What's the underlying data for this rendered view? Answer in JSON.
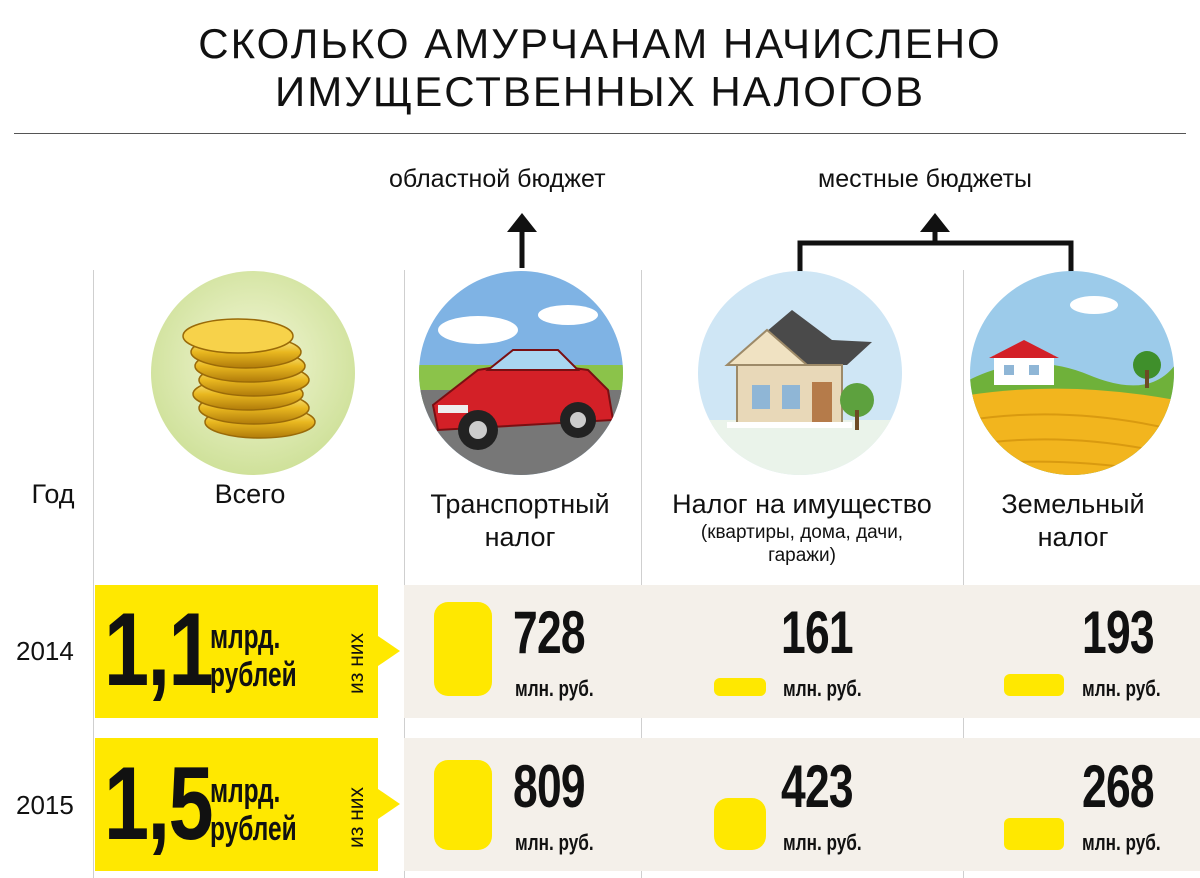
{
  "title": {
    "line1": "СКОЛЬКО АМУРЧАНАМ НАЧИСЛЕНО",
    "line2": "ИМУЩЕСТВЕННЫХ НАЛОГОВ"
  },
  "budgets": {
    "regional": "областной бюджет",
    "local": "местные бюджеты"
  },
  "headers": {
    "year": "Год",
    "total": "Всего",
    "transport_line1": "Транспортный",
    "transport_line2": "налог",
    "property": "Налог на имущество",
    "property_sub_line1": "(квартиры, дома, дачи,",
    "property_sub_line2": "гаражи)",
    "land_line1": "Земельный",
    "land_line2": "налог"
  },
  "icons": {
    "coins": "coins-icon",
    "car": "car-icon",
    "house": "house-icon",
    "land": "land-icon"
  },
  "colors": {
    "accent": "#ffe800",
    "row_background": "#f4f0ea"
  },
  "rows": [
    {
      "year": "2014",
      "total_value": "1,1",
      "total_unit_line1": "млрд.",
      "total_unit_line2": "рублей",
      "of_which": "из них",
      "transport": "728",
      "property": "161",
      "land": "193",
      "unit": "млн. руб."
    },
    {
      "year": "2015",
      "total_value": "1,5",
      "total_unit_line1": "млрд.",
      "total_unit_line2": "рублей",
      "of_which": "из них",
      "transport": "809",
      "property": "423",
      "land": "268",
      "unit": "млн. руб."
    }
  ]
}
